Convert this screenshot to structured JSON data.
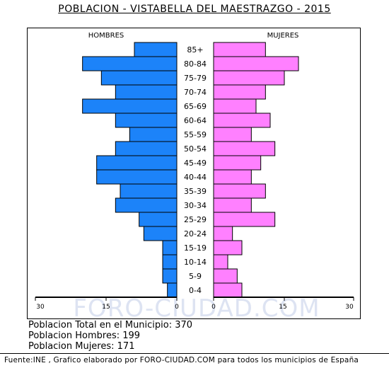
{
  "title": "POBLACION - VISTABELLA DEL MAESTRAZGO - 2015",
  "chart_data": {
    "type": "bar",
    "orientation": "horizontal-population-pyramid",
    "categories": [
      "85+",
      "80-84",
      "75-79",
      "70-74",
      "65-69",
      "60-64",
      "55-59",
      "50-54",
      "45-49",
      "40-44",
      "35-39",
      "30-34",
      "25-29",
      "20-24",
      "15-19",
      "10-14",
      "5-9",
      "0-4"
    ],
    "series": [
      {
        "name": "HOMBRES",
        "color": "#1c83f9",
        "values": [
          9,
          20,
          16,
          13,
          20,
          13,
          10,
          13,
          17,
          17,
          12,
          13,
          8,
          7,
          3,
          3,
          3,
          2
        ]
      },
      {
        "name": "MUJERES",
        "color": "#ff80ff",
        "values": [
          11,
          18,
          15,
          11,
          9,
          12,
          8,
          13,
          10,
          8,
          11,
          8,
          13,
          4,
          6,
          3,
          5,
          6
        ]
      }
    ],
    "xticks": [
      "30",
      "15",
      "0",
      "0",
      "15",
      "30"
    ],
    "xlim": [
      0,
      30
    ],
    "watermark": "FORO-CIUDAD.COM"
  },
  "summary": {
    "total": "Poblacion Total en el Municipio: 370",
    "hombres": "Poblacion Hombres: 199",
    "mujeres": "Poblacion Mujeres: 171"
  },
  "footer": "Fuente:INE , Grafico elaborado por FORO-CIUDAD.COM para todos los municipios de España"
}
